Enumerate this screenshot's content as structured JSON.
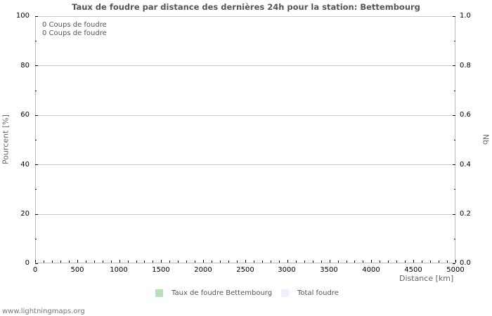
{
  "chart": {
    "title": "Taux de foudre par distance des dernières 24h pour la station: Bettembourg",
    "info_lines": [
      "0  Coups de foudre",
      "0  Coups de foudre"
    ],
    "y_left_title": "Pourcent   [%]",
    "y_right_title": "Nb",
    "x_title": "Distance   [km]",
    "y_left_ticks": [
      "100",
      "80",
      "60",
      "40",
      "20",
      "0"
    ],
    "y_right_ticks": [
      "1.0",
      "0.8",
      "0.6",
      "0.4",
      "0.2",
      "0.0"
    ],
    "x_ticks": [
      "0",
      "500",
      "1000",
      "1500",
      "2000",
      "2500",
      "3000",
      "3500",
      "4000",
      "4500",
      "5000"
    ],
    "legend": [
      {
        "label": "Taux de foudre Bettembourg",
        "color": "#b8e0b8"
      },
      {
        "label": "Total foudre",
        "color": "#f0f0fc"
      }
    ],
    "footer": "www.lightningmaps.org"
  },
  "chart_data": {
    "type": "bar",
    "title": "Taux de foudre par distance des dernières 24h pour la station: Bettembourg",
    "xlabel": "Distance [km]",
    "ylabel": "Pourcent [%]",
    "ylabel_right": "Nb",
    "xlim": [
      0,
      5000
    ],
    "ylim": [
      0,
      100
    ],
    "ylim_right": [
      0.0,
      1.0
    ],
    "x_tick_labels": [
      "0",
      "500",
      "1000",
      "1500",
      "2000",
      "2500",
      "3000",
      "3500",
      "4000",
      "4500",
      "5000"
    ],
    "y_tick_labels": [
      "0",
      "20",
      "40",
      "60",
      "80",
      "100"
    ],
    "y_right_tick_labels": [
      "0.0",
      "0.2",
      "0.4",
      "0.6",
      "0.8",
      "1.0"
    ],
    "grid": true,
    "legend_position": "bottom",
    "series": [
      {
        "name": "Taux de foudre Bettembourg",
        "values": [],
        "color": "#b8e0b8"
      },
      {
        "name": "Total foudre",
        "values": [],
        "color": "#f0f0fc"
      }
    ],
    "annotations": [
      "0  Coups de foudre",
      "0  Coups de foudre"
    ]
  }
}
